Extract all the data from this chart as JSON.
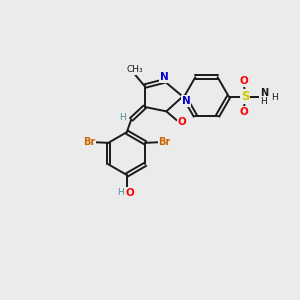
{
  "bg_color": "#ebebeb",
  "bond_color": "#1a1a1a",
  "colors": {
    "N": "#0000cc",
    "O": "#ff0000",
    "S": "#cccc00",
    "Br": "#cc6600",
    "H_teal": "#4a9090",
    "C": "#1a1a1a"
  },
  "layout": {
    "xlim": [
      0,
      10
    ],
    "ylim": [
      0,
      10
    ]
  }
}
